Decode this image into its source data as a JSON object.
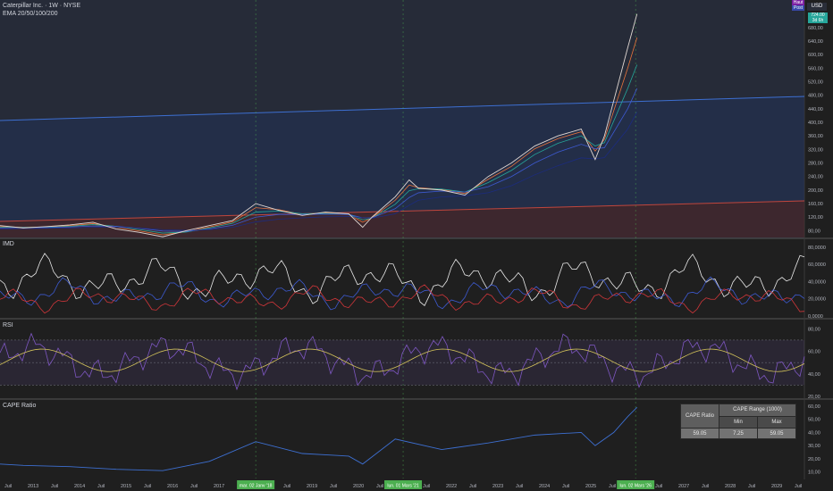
{
  "header": {
    "title": "Caterpillar Inc. · 1W · NYSE",
    "indicator": "EMA 20/50/100/200"
  },
  "badges": {
    "hist": "Haut",
    "post": "Post",
    "ccy": "USD",
    "price": "724.00",
    "countdown": "3d 6h"
  },
  "panes": {
    "imd": {
      "label": "IMD",
      "ticks": [
        "80,0000",
        "60,0000",
        "40,0000",
        "20,0000",
        "0,0000"
      ]
    },
    "rsi": {
      "label": "RSI",
      "ticks": [
        "80,00",
        "60,00",
        "40,00",
        "20,00"
      ]
    },
    "cape": {
      "label": "CAPE Ratio",
      "ticks": [
        "60,00",
        "50,00",
        "40,00",
        "30,00",
        "20,00",
        "10,00"
      ]
    }
  },
  "price_ticks": [
    "680,00",
    "640,00",
    "600,00",
    "560,00",
    "520,00",
    "480,00",
    "440,00",
    "400,00",
    "360,00",
    "320,00",
    "280,00",
    "240,00",
    "200,00",
    "160,00",
    "120,00",
    "80,00"
  ],
  "time_axis": [
    "Juil",
    "2013",
    "Juil",
    "2014",
    "Juil",
    "2015",
    "Juil",
    "2016",
    "Juil",
    "2017",
    "Juil",
    "2018",
    "Juil",
    "2019",
    "Juil",
    "2020",
    "Juil",
    "2021",
    "Juil",
    "2022",
    "Juil",
    "2023",
    "Juil",
    "2024",
    "Juil",
    "2025",
    "Juil",
    "2026",
    "Juil",
    "2027",
    "Juil",
    "2028",
    "Juil",
    "2029",
    "Juil"
  ],
  "markers": [
    "mar. 02 Janv '18",
    "lun. 01 Mars '21",
    "lun. 02 Mars '26"
  ],
  "cape_table": {
    "col1": "CAPE Ratio",
    "range": "CAPE Range (1000)",
    "min_label": "Min",
    "max_label": "Max",
    "current": "59.05",
    "min": "7.25",
    "max": "59.05"
  },
  "chart_data": {
    "type": "line",
    "price": {
      "x": [
        2012.5,
        2013,
        2013.5,
        2014,
        2014.5,
        2015,
        2015.5,
        2016,
        2016.5,
        2017,
        2017.5,
        2018,
        2018.5,
        2019,
        2019.5,
        2020,
        2020.3,
        2020.5,
        2021,
        2021.3,
        2021.5,
        2022,
        2022.5,
        2023,
        2023.5,
        2024,
        2024.5,
        2025,
        2025.3,
        2025.5,
        2026,
        2026.2
      ],
      "y": [
        95,
        88,
        92,
        97,
        105,
        85,
        75,
        62,
        80,
        95,
        110,
        160,
        140,
        125,
        135,
        130,
        90,
        120,
        180,
        230,
        205,
        200,
        185,
        240,
        280,
        330,
        360,
        380,
        290,
        360,
        620,
        720
      ]
    },
    "ema": [
      {
        "name": "EMA 20",
        "y": [
          92,
          90,
          91,
          95,
          101,
          90,
          79,
          68,
          77,
          91,
          106,
          148,
          142,
          128,
          133,
          128,
          105,
          118,
          170,
          215,
          207,
          202,
          190,
          232,
          270,
          322,
          352,
          372,
          315,
          350,
          560,
          650
        ]
      },
      {
        "name": "EMA 50",
        "y": [
          90,
          90,
          90,
          93,
          98,
          93,
          83,
          73,
          76,
          88,
          102,
          135,
          138,
          130,
          131,
          128,
          112,
          117,
          158,
          198,
          204,
          203,
          194,
          222,
          258,
          305,
          338,
          360,
          330,
          340,
          500,
          570
        ]
      },
      {
        "name": "EMA 100",
        "y": [
          88,
          89,
          89,
          91,
          94,
          93,
          87,
          79,
          78,
          85,
          96,
          120,
          128,
          128,
          129,
          128,
          118,
          118,
          145,
          178,
          192,
          197,
          194,
          210,
          240,
          280,
          312,
          335,
          322,
          325,
          440,
          500
        ]
      },
      {
        "name": "EMA 200",
        "y": [
          85,
          86,
          87,
          88,
          90,
          90,
          88,
          83,
          81,
          83,
          90,
          106,
          114,
          118,
          121,
          122,
          118,
          117,
          130,
          155,
          170,
          180,
          183,
          192,
          213,
          245,
          272,
          295,
          292,
          296,
          380,
          430
        ]
      }
    ],
    "cape": {
      "x": [
        2012.5,
        2013,
        2014,
        2015,
        2016,
        2017,
        2018,
        2019,
        2020,
        2020.3,
        2021,
        2022,
        2023,
        2024,
        2025,
        2025.3,
        2025.7,
        2026,
        2026.2
      ],
      "y": [
        16,
        15,
        14,
        12,
        11,
        18,
        33,
        24,
        22,
        16,
        35,
        27,
        32,
        38,
        40,
        30,
        40,
        52,
        59.05
      ]
    },
    "rsi_range": [
      20,
      85
    ],
    "price_range": [
      60,
      740
    ],
    "x_range": [
      2012.5,
      2029.8
    ]
  }
}
